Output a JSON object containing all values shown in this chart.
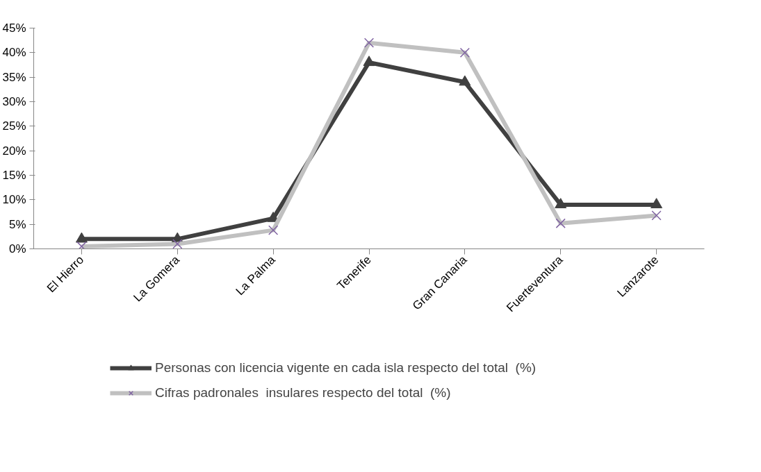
{
  "chart_data": {
    "type": "line",
    "categories": [
      "El Hierro",
      "La Gomera",
      "La Palma",
      "Tenerife",
      "Gran Canaria",
      "Fuerteventura",
      "Lanzarote"
    ],
    "series": [
      {
        "name": "Personas con licencia vigente en cada isla respecto del total  (%)",
        "color": "#404040",
        "marker": "triangle",
        "values": [
          2,
          2,
          6.2,
          38,
          34,
          9,
          9
        ]
      },
      {
        "name": "Cifras padronales  insulares respecto del total  (%)",
        "color": "#c0c0c0",
        "marker": "cross",
        "values": [
          0.5,
          1,
          3.8,
          42,
          40,
          5.2,
          6.8
        ]
      }
    ],
    "ylim": [
      0,
      45
    ],
    "yticks": [
      {
        "value": 0,
        "label": "0%"
      },
      {
        "value": 5,
        "label": "5%"
      },
      {
        "value": 10,
        "label": "10%"
      },
      {
        "value": 15,
        "label": "15%"
      },
      {
        "value": 20,
        "label": "20%"
      },
      {
        "value": 25,
        "label": "25%"
      },
      {
        "value": 30,
        "label": "30%"
      },
      {
        "value": 35,
        "label": "35%"
      },
      {
        "value": 40,
        "label": "40%"
      },
      {
        "value": 45,
        "label": "45%"
      }
    ],
    "grid": false,
    "legend": "bottom",
    "line_style": "solid"
  }
}
